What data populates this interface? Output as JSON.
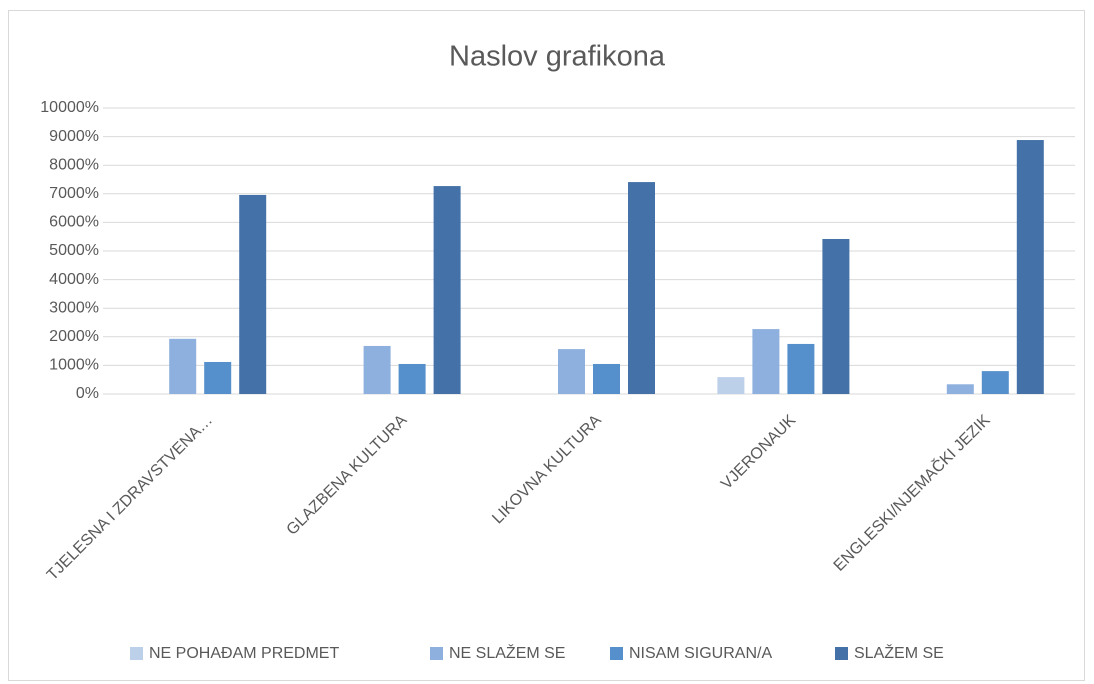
{
  "chart_data": {
    "type": "bar",
    "title": "Naslov grafikona",
    "categories": [
      "TJELESNA I ZDRAVSTVENA…",
      "GLAZBENA KULTURA",
      "LIKOVNA KULTURA",
      "VJERONAUK",
      "ENGLESKI/NJEMAČKI JEZIK"
    ],
    "series": [
      {
        "name": "NE POHAĐAM PREDMET",
        "color": "#bdd0ea",
        "values": [
          0,
          0,
          0,
          590,
          0
        ]
      },
      {
        "name": "NE SLAŽEM SE",
        "color": "#8eb0de",
        "values": [
          1930,
          1680,
          1570,
          2270,
          340
        ]
      },
      {
        "name": "NISAM SIGURAN/A",
        "color": "#5590cd",
        "values": [
          1120,
          1050,
          1050,
          1750,
          800
        ]
      },
      {
        "name": "SLAŽEM SE",
        "color": "#4472a8",
        "values": [
          6960,
          7270,
          7410,
          5420,
          8880
        ]
      }
    ],
    "ylim": [
      0,
      10000
    ],
    "yticks": [
      {
        "value": 0,
        "label": "0%"
      },
      {
        "value": 1000,
        "label": "1000%"
      },
      {
        "value": 2000,
        "label": "2000%"
      },
      {
        "value": 3000,
        "label": "3000%"
      },
      {
        "value": 4000,
        "label": "4000%"
      },
      {
        "value": 5000,
        "label": "5000%"
      },
      {
        "value": 6000,
        "label": "6000%"
      },
      {
        "value": 7000,
        "label": "7000%"
      },
      {
        "value": 8000,
        "label": "8000%"
      },
      {
        "value": 9000,
        "label": "9000%"
      },
      {
        "value": 10000,
        "label": "10000%"
      }
    ],
    "grid": true,
    "legend": "bottom"
  }
}
